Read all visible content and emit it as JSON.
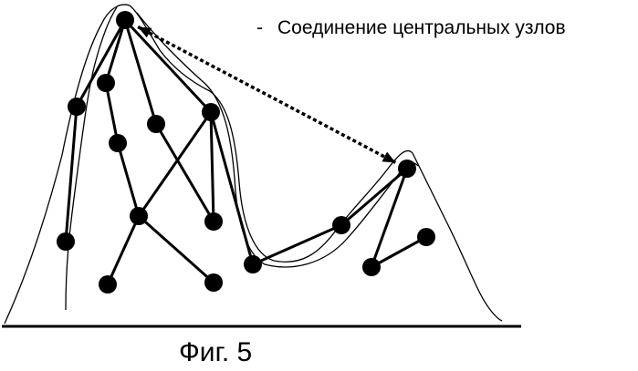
{
  "legend": {
    "dash": "-",
    "text": "Соединение центральных узлов"
  },
  "caption": "Фиг. 5",
  "colors": {
    "ink": "#000000",
    "background": "#ffffff"
  },
  "graph": {
    "nodes": [
      {
        "id": "n1",
        "label": ""
      },
      {
        "id": "n2",
        "label": ""
      },
      {
        "id": "n3",
        "label": ""
      },
      {
        "id": "n4",
        "label": ""
      },
      {
        "id": "n5",
        "label": ""
      },
      {
        "id": "n6",
        "label": ""
      },
      {
        "id": "n7",
        "label": ""
      },
      {
        "id": "n8",
        "label": ""
      },
      {
        "id": "n9",
        "label": ""
      },
      {
        "id": "n10",
        "label": ""
      },
      {
        "id": "n11",
        "label": ""
      },
      {
        "id": "n12",
        "label": ""
      },
      {
        "id": "n13",
        "label": ""
      },
      {
        "id": "n14",
        "label": ""
      },
      {
        "id": "n15",
        "label": ""
      },
      {
        "id": "n16",
        "label": ""
      }
    ],
    "edges": [
      [
        "n1",
        "n2"
      ],
      [
        "n1",
        "n3"
      ],
      [
        "n1",
        "n4"
      ],
      [
        "n1",
        "n5"
      ],
      [
        "n2",
        "n6"
      ],
      [
        "n3",
        "n7"
      ],
      [
        "n5",
        "n8"
      ],
      [
        "n5",
        "n9"
      ],
      [
        "n5",
        "n12"
      ],
      [
        "n6",
        "n8"
      ],
      [
        "n4",
        "n9"
      ],
      [
        "n8",
        "n10"
      ],
      [
        "n8",
        "n11"
      ],
      [
        "n12",
        "n13"
      ],
      [
        "n13",
        "n14"
      ],
      [
        "n14",
        "n15"
      ],
      [
        "n15",
        "n16"
      ]
    ],
    "central_link": [
      "n1",
      "n14"
    ]
  }
}
